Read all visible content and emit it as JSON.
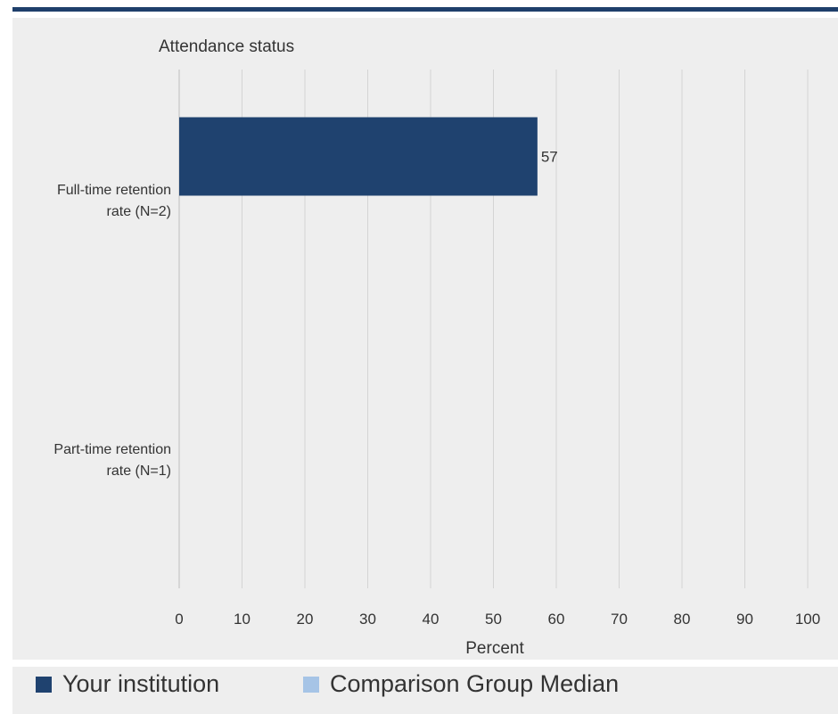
{
  "chart_data": {
    "type": "bar",
    "orientation": "horizontal",
    "title": "Attendance status",
    "xlabel": "Percent",
    "ylabel": "",
    "xlim": [
      0,
      100
    ],
    "xticks": [
      "0",
      "10",
      "20",
      "30",
      "40",
      "50",
      "60",
      "70",
      "80",
      "90",
      "100"
    ],
    "categories": [
      "Full-time retention rate (N=2)",
      "Part-time retention rate (N=1)"
    ],
    "category_lines": [
      [
        "Full-time retention",
        "rate (N=2)"
      ],
      [
        "Part-time retention",
        "rate (N=1)"
      ]
    ],
    "series": [
      {
        "name": "Your institution",
        "color": "#1f426f",
        "values": [
          57,
          null
        ]
      },
      {
        "name": "Comparison Group Median",
        "color": "#a6c4e6",
        "values": [
          null,
          null
        ]
      }
    ],
    "data_labels": [
      "57",
      ""
    ],
    "grid": true,
    "legend_position": "bottom"
  }
}
